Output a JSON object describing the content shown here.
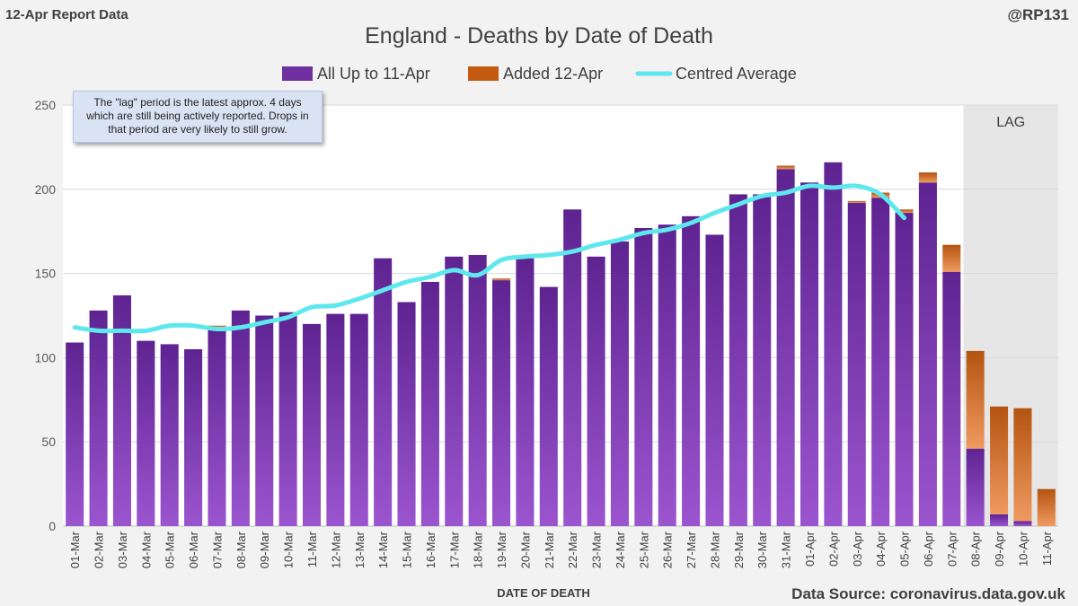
{
  "report_label": "12-Apr Report Data",
  "handle": "@RP131",
  "source": "Data Source: coronavirus.data.gov.uk",
  "note": "The \"lag\" period is the latest approx. 4 days which are still being actively reported. Drops in that period are very likely to still grow.",
  "lag_label": "LAG",
  "colors": {
    "purple": "#7030a0",
    "orange": "#c55a11",
    "cyan": "#5ee8ee",
    "lag_bg": "#e6e6e6"
  },
  "chart_data": {
    "type": "bar",
    "title": "England - Deaths by Date of Death",
    "xlabel": "DATE OF DEATH",
    "ylabel": "",
    "ylim": [
      0,
      250
    ],
    "yticks": [
      0,
      50,
      100,
      150,
      200,
      250
    ],
    "legend_position": "top",
    "categories": [
      "01-Mar",
      "02-Mar",
      "03-Mar",
      "04-Mar",
      "05-Mar",
      "06-Mar",
      "07-Mar",
      "08-Mar",
      "09-Mar",
      "10-Mar",
      "11-Mar",
      "12-Mar",
      "13-Mar",
      "14-Mar",
      "15-Mar",
      "16-Mar",
      "17-Mar",
      "18-Mar",
      "19-Mar",
      "20-Mar",
      "21-Mar",
      "22-Mar",
      "23-Mar",
      "24-Mar",
      "25-Mar",
      "26-Mar",
      "27-Mar",
      "28-Mar",
      "29-Mar",
      "30-Mar",
      "31-Mar",
      "01-Apr",
      "02-Apr",
      "03-Apr",
      "04-Apr",
      "05-Apr",
      "06-Apr",
      "07-Apr",
      "08-Apr",
      "09-Apr",
      "10-Apr",
      "11-Apr"
    ],
    "lag_start_index": 38,
    "series": [
      {
        "name": "All Up to 11-Apr",
        "kind": "bar",
        "values": [
          109,
          128,
          137,
          110,
          108,
          105,
          118,
          128,
          125,
          127,
          120,
          126,
          126,
          159,
          133,
          145,
          160,
          161,
          146,
          159,
          142,
          188,
          160,
          169,
          177,
          179,
          184,
          173,
          197,
          197,
          212,
          204,
          216,
          192,
          195,
          186,
          204,
          151,
          46,
          7,
          3,
          0
        ]
      },
      {
        "name": "Added 12-Apr",
        "kind": "bar",
        "values": [
          0,
          0,
          0,
          0,
          0,
          0,
          1,
          0,
          0,
          0,
          0,
          0,
          0,
          0,
          0,
          0,
          0,
          0,
          1,
          0,
          0,
          0,
          0,
          0,
          0,
          0,
          0,
          0,
          0,
          0,
          2,
          0,
          0,
          1,
          3,
          2,
          6,
          16,
          58,
          64,
          67,
          22
        ]
      },
      {
        "name": "Centred Average",
        "kind": "line",
        "values": [
          118,
          116,
          116,
          116,
          119,
          119,
          117,
          118,
          121,
          124,
          130,
          131,
          135,
          140,
          145,
          148,
          152,
          149,
          158,
          160,
          161,
          163,
          167,
          170,
          174,
          176,
          180,
          186,
          191,
          196,
          198,
          202,
          201,
          202,
          197,
          183,
          null,
          null,
          null,
          null,
          null,
          null
        ]
      }
    ]
  }
}
